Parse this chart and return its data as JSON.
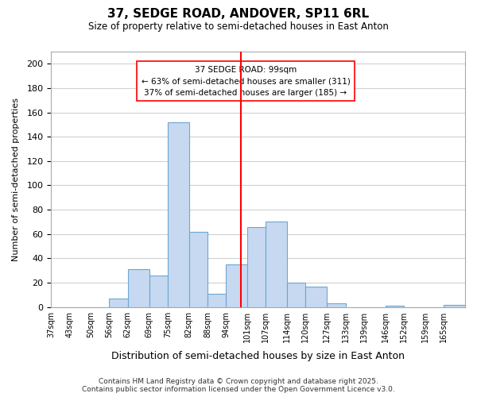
{
  "title": "37, SEDGE ROAD, ANDOVER, SP11 6RL",
  "subtitle": "Size of property relative to semi-detached houses in East Anton",
  "xlabel": "Distribution of semi-detached houses by size in East Anton",
  "ylabel": "Number of semi-detached properties",
  "bin_labels": [
    "37sqm",
    "43sqm",
    "50sqm",
    "56sqm",
    "62sqm",
    "69sqm",
    "75sqm",
    "82sqm",
    "88sqm",
    "94sqm",
    "101sqm",
    "107sqm",
    "114sqm",
    "120sqm",
    "127sqm",
    "133sqm",
    "139sqm",
    "146sqm",
    "152sqm",
    "159sqm",
    "165sqm"
  ],
  "bin_edges": [
    37,
    43,
    50,
    56,
    62,
    69,
    75,
    82,
    88,
    94,
    101,
    107,
    114,
    120,
    127,
    133,
    139,
    146,
    152,
    159,
    165,
    172
  ],
  "bar_heights": [
    0,
    0,
    0,
    7,
    31,
    26,
    152,
    62,
    11,
    35,
    66,
    70,
    20,
    17,
    3,
    0,
    0,
    1,
    0,
    0,
    2
  ],
  "bar_color": "#c6d9f0",
  "bar_edge_color": "#6ea6d0",
  "property_line_x": 99,
  "property_line_color": "red",
  "annotation_title": "37 SEDGE ROAD: 99sqm",
  "annotation_line1": "← 63% of semi-detached houses are smaller (311)",
  "annotation_line2": "37% of semi-detached houses are larger (185) →",
  "ylim": [
    0,
    210
  ],
  "yticks": [
    0,
    20,
    40,
    60,
    80,
    100,
    120,
    140,
    160,
    180,
    200
  ],
  "footer_line1": "Contains HM Land Registry data © Crown copyright and database right 2025.",
  "footer_line2": "Contains public sector information licensed under the Open Government Licence v3.0.",
  "background_color": "#ffffff",
  "grid_color": "#d0d0d0"
}
